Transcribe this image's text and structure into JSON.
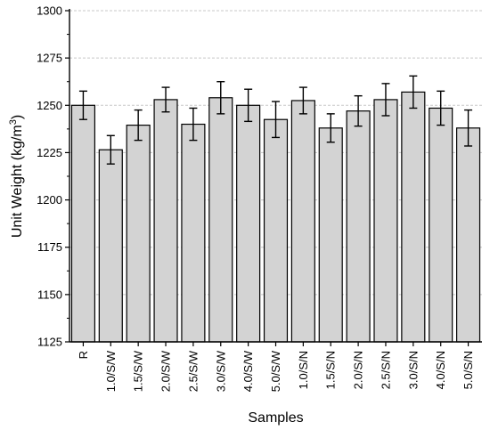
{
  "chart_data": {
    "type": "bar",
    "title": "",
    "xlabel": "Samples",
    "ylabel": {
      "main": "Unit Weight (kg/m",
      "superscript": "3",
      "suffix": ")"
    },
    "ylim": [
      1125,
      1300
    ],
    "yticks": [
      1125,
      1150,
      1175,
      1200,
      1225,
      1250,
      1275,
      1300
    ],
    "grid": {
      "y": true,
      "style": "dashed",
      "color": "#c8c8c8"
    },
    "bar_color": "#d3d3d3",
    "bar_edge_color": "#000000",
    "categories": [
      "R",
      "1.0/S/W",
      "1.5/S/W",
      "2.0/S/W",
      "2.5/S/W",
      "3.0/S/W",
      "4.0/S/W",
      "5.0/S/W",
      "1.0/S/N",
      "1.5/S/N",
      "2.0/S/N",
      "2.5/S/N",
      "3.0/S/N",
      "4.0/S/N",
      "5.0/S/N"
    ],
    "values": [
      1250,
      1226.5,
      1239.5,
      1253,
      1240,
      1254,
      1250,
      1242.5,
      1252.5,
      1238,
      1247,
      1253,
      1257,
      1248.5,
      1238
    ],
    "errors": [
      7.5,
      7.5,
      8,
      6.5,
      8.5,
      8.5,
      8.5,
      9.5,
      7,
      7.5,
      8,
      8.5,
      8.5,
      9,
      9.5
    ]
  }
}
